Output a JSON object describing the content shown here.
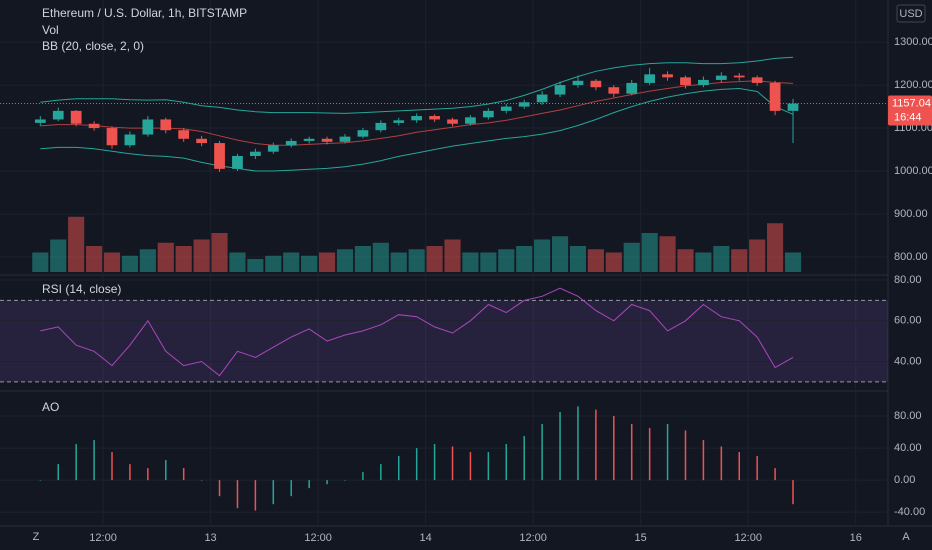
{
  "chart_data": [
    {
      "type": "candlestick",
      "title": "Ethereum / U.S. Dollar, 1h, BITSTAMP",
      "currency": "USD",
      "last_price_label": "1157.04",
      "countdown": "16:44",
      "up_color": "#26a69a",
      "down_color": "#ef5350",
      "x": [
        5,
        7,
        9,
        11,
        13,
        15,
        17,
        19,
        21,
        23,
        25,
        27,
        29,
        31,
        33,
        35,
        37,
        39,
        41,
        43,
        45,
        47,
        49,
        51,
        53,
        55,
        57,
        59,
        61,
        63,
        65,
        67,
        69,
        71,
        73,
        75,
        77,
        79,
        81,
        83,
        85,
        87,
        89
      ],
      "open": [
        1112,
        1120,
        1140,
        1110,
        1100,
        1060,
        1085,
        1120,
        1095,
        1075,
        1065,
        1005,
        1035,
        1045,
        1060,
        1070,
        1075,
        1068,
        1080,
        1095,
        1112,
        1118,
        1128,
        1120,
        1110,
        1125,
        1140,
        1150,
        1160,
        1178,
        1200,
        1210,
        1195,
        1180,
        1205,
        1225,
        1218,
        1200,
        1212,
        1222,
        1218,
        1205,
        1140
      ],
      "high": [
        1128,
        1148,
        1142,
        1116,
        1104,
        1092,
        1128,
        1124,
        1100,
        1082,
        1070,
        1040,
        1052,
        1066,
        1076,
        1080,
        1080,
        1086,
        1100,
        1118,
        1124,
        1134,
        1132,
        1124,
        1130,
        1146,
        1156,
        1166,
        1186,
        1208,
        1222,
        1214,
        1200,
        1212,
        1240,
        1232,
        1222,
        1220,
        1230,
        1228,
        1222,
        1210,
        1168
      ],
      "low": [
        1105,
        1116,
        1104,
        1094,
        1052,
        1055,
        1080,
        1088,
        1068,
        1058,
        998,
        1000,
        1028,
        1040,
        1055,
        1064,
        1062,
        1064,
        1076,
        1090,
        1106,
        1112,
        1114,
        1104,
        1106,
        1120,
        1134,
        1145,
        1154,
        1172,
        1194,
        1188,
        1172,
        1176,
        1200,
        1210,
        1192,
        1195,
        1206,
        1210,
        1198,
        1130,
        1065
      ],
      "close": [
        1120,
        1140,
        1110,
        1100,
        1060,
        1085,
        1120,
        1095,
        1075,
        1065,
        1005,
        1035,
        1045,
        1060,
        1070,
        1075,
        1068,
        1080,
        1095,
        1112,
        1118,
        1128,
        1120,
        1110,
        1125,
        1140,
        1150,
        1160,
        1178,
        1200,
        1210,
        1195,
        1180,
        1205,
        1225,
        1218,
        1200,
        1212,
        1222,
        1218,
        1205,
        1140,
        1157.04
      ],
      "ylim": [
        765,
        1398
      ],
      "yticks": [
        {
          "value": 800,
          "label": "800.00"
        },
        {
          "value": 900,
          "label": "900.00"
        },
        {
          "value": 1000,
          "label": "1000.00"
        },
        {
          "value": 1100,
          "label": "1100.00"
        },
        {
          "value": 1200,
          "label": "1200.00"
        },
        {
          "value": 1300,
          "label": "1300.00"
        }
      ],
      "xlim": [
        0.5,
        99.6
      ],
      "xticks": [
        {
          "value": 12,
          "label": "12:00"
        },
        {
          "value": 24,
          "label": "13"
        },
        {
          "value": 36,
          "label": "12:00"
        },
        {
          "value": 48,
          "label": "14"
        },
        {
          "value": 60,
          "label": "12:00"
        },
        {
          "value": 72,
          "label": "15"
        },
        {
          "value": 84,
          "label": "12:00"
        },
        {
          "value": 96,
          "label": "16"
        }
      ],
      "volume": {
        "name": "Vol",
        "ylim": [
          0,
          100
        ],
        "values": [
          30,
          50,
          85,
          40,
          30,
          25,
          35,
          45,
          40,
          50,
          60,
          30,
          20,
          25,
          30,
          25,
          30,
          35,
          40,
          45,
          30,
          35,
          40,
          50,
          30,
          30,
          35,
          40,
          50,
          55,
          40,
          35,
          30,
          45,
          60,
          55,
          35,
          30,
          40,
          35,
          50,
          75,
          30
        ]
      },
      "bollinger": {
        "name": "BB (20, close, 2, 0)",
        "band_color": "#26a69a",
        "basis_color": "#b0413e",
        "upper": [
          1160,
          1165,
          1168,
          1168,
          1168,
          1166,
          1165,
          1166,
          1160,
          1152,
          1148,
          1142,
          1138,
          1136,
          1136,
          1136,
          1135,
          1134,
          1136,
          1138,
          1140,
          1142,
          1144,
          1146,
          1150,
          1156,
          1164,
          1176,
          1190,
          1206,
          1220,
          1232,
          1240,
          1246,
          1250,
          1252,
          1252,
          1250,
          1250,
          1252,
          1256,
          1262,
          1265
        ],
        "middle": [
          1105,
          1108,
          1108,
          1106,
          1102,
          1100,
          1100,
          1100,
          1098,
          1092,
          1082,
          1072,
          1064,
          1060,
          1060,
          1062,
          1064,
          1066,
          1070,
          1076,
          1082,
          1090,
          1096,
          1102,
          1108,
          1112,
          1118,
          1126,
          1134,
          1142,
          1152,
          1162,
          1170,
          1178,
          1186,
          1192,
          1198,
          1202,
          1206,
          1208,
          1210,
          1206,
          1204
        ],
        "lower": [
          1052,
          1055,
          1055,
          1052,
          1046,
          1040,
          1036,
          1034,
          1030,
          1020,
          1012,
          1006,
          1000,
          1000,
          1002,
          1004,
          1006,
          1010,
          1016,
          1024,
          1034,
          1042,
          1050,
          1058,
          1064,
          1070,
          1076,
          1080,
          1086,
          1094,
          1106,
          1120,
          1136,
          1150,
          1162,
          1172,
          1180,
          1186,
          1190,
          1192,
          1185,
          1150,
          1132
        ]
      }
    },
    {
      "type": "line",
      "title": "RSI (14, close)",
      "color": "#ab47bc",
      "bands": [
        30,
        70
      ],
      "values": [
        55,
        57,
        48,
        45,
        38,
        48,
        60,
        45,
        38,
        40,
        33,
        45,
        42,
        47,
        52,
        56,
        50,
        53,
        55,
        58,
        63,
        62,
        57,
        54,
        60,
        68,
        64,
        70,
        72,
        76,
        72,
        65,
        60,
        68,
        65,
        55,
        60,
        68,
        62,
        60,
        52,
        37,
        42
      ],
      "ylim": [
        26,
        81
      ],
      "yticks": [
        {
          "value": 40,
          "label": "40.00"
        },
        {
          "value": 60,
          "label": "60.00"
        },
        {
          "value": 80,
          "label": "80.00"
        }
      ]
    },
    {
      "type": "bar",
      "title": "AO",
      "up_color": "#26a69a",
      "down_color": "#ef5350",
      "values": [
        0,
        20,
        45,
        50,
        35,
        20,
        15,
        25,
        15,
        0,
        -20,
        -35,
        -38,
        -30,
        -20,
        -10,
        -5,
        0,
        10,
        20,
        30,
        40,
        45,
        42,
        35,
        35,
        45,
        55,
        70,
        85,
        92,
        88,
        80,
        70,
        65,
        70,
        62,
        50,
        42,
        35,
        30,
        15,
        -30
      ],
      "ylim": [
        -56,
        110
      ],
      "yticks": [
        {
          "value": -40,
          "label": "-40.00"
        },
        {
          "value": 0,
          "label": "0.00"
        },
        {
          "value": 40,
          "label": "40.00"
        },
        {
          "value": 80,
          "label": "80.00"
        }
      ]
    }
  ],
  "toolbar": {
    "left": "Z",
    "right": "A"
  }
}
